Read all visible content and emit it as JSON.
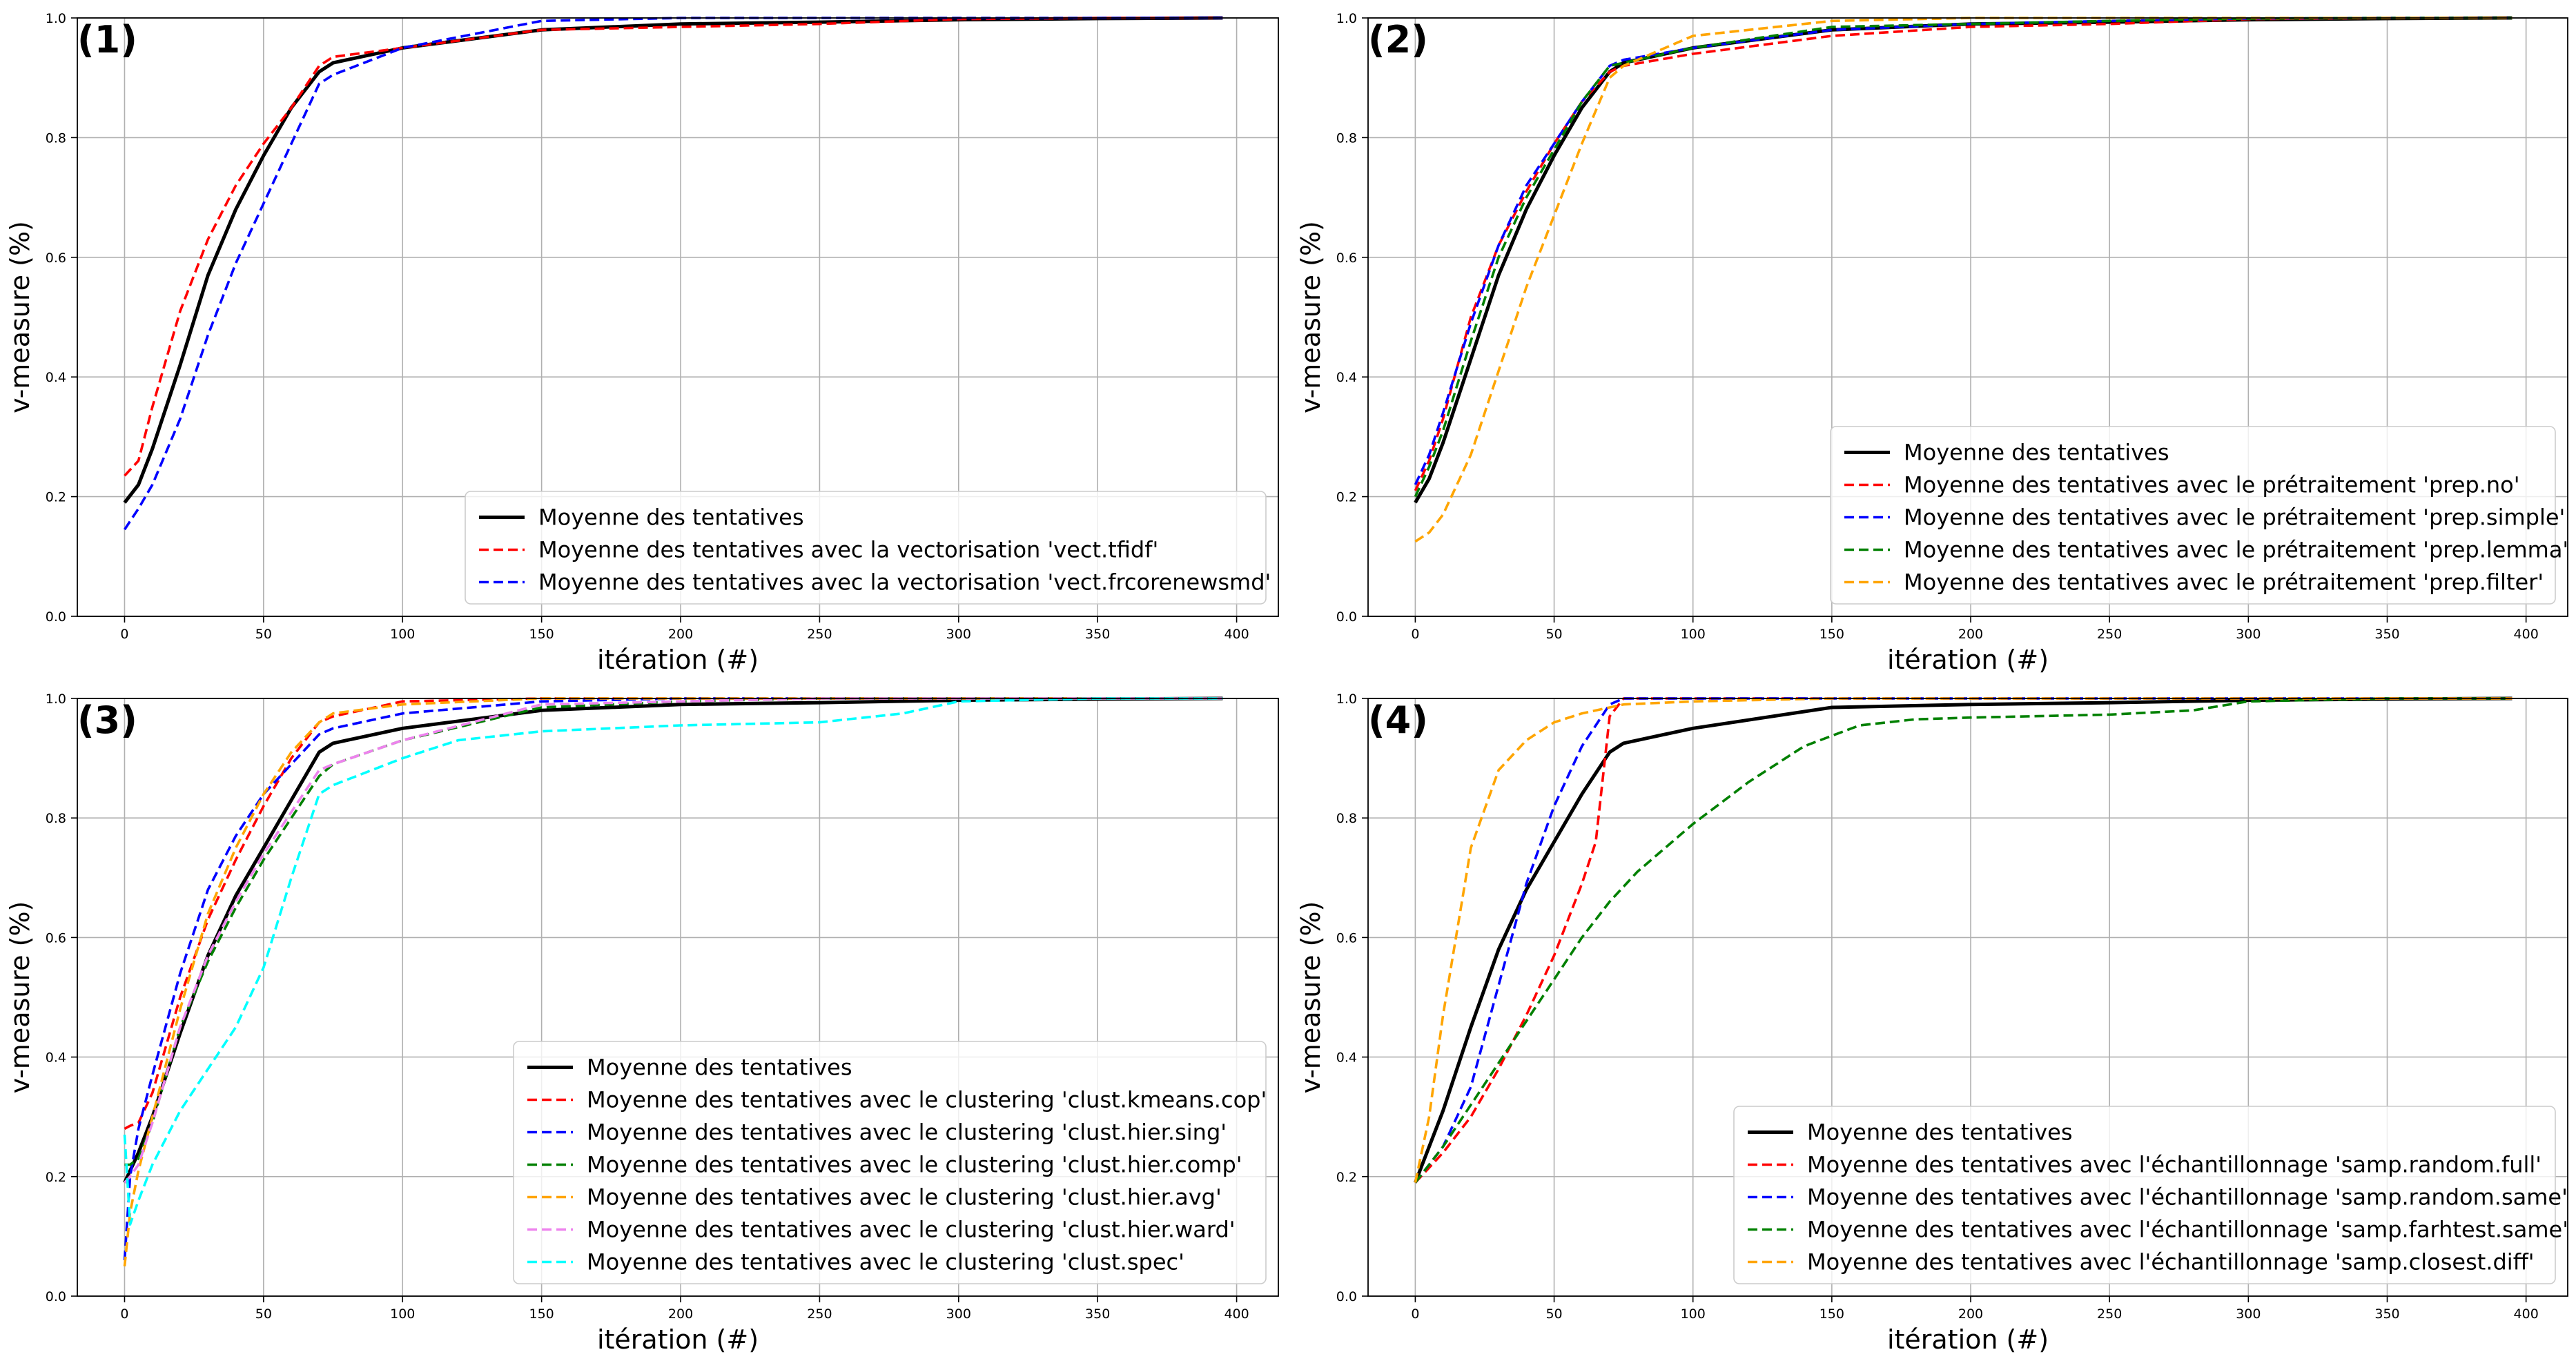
{
  "chart_data": [
    {
      "panel": "(1)",
      "type": "line",
      "xlabel": "itération (#)",
      "ylabel": "v-measure (%)",
      "xlim": [
        -17,
        415
      ],
      "ylim": [
        0.0,
        1.0
      ],
      "xticks": [
        0,
        50,
        100,
        150,
        200,
        250,
        300,
        350,
        400
      ],
      "yticks": [
        0.0,
        0.2,
        0.4,
        0.6,
        0.8,
        1.0
      ],
      "grid": true,
      "legend_position": "lower-right",
      "series": [
        {
          "name": "Moyenne des tentatives",
          "color": "#000000",
          "dash": "solid",
          "x": [
            0,
            5,
            10,
            20,
            30,
            40,
            50,
            60,
            70,
            75,
            100,
            150,
            200,
            250,
            300,
            350,
            395
          ],
          "y": [
            0.19,
            0.22,
            0.28,
            0.42,
            0.57,
            0.68,
            0.77,
            0.85,
            0.91,
            0.925,
            0.95,
            0.98,
            0.99,
            0.993,
            0.997,
            0.999,
            1.0
          ]
        },
        {
          "name": "Moyenne des tentatives avec la vectorisation 'vect.tfidf'",
          "color": "#ff0000",
          "dash": "dashed",
          "x": [
            0,
            5,
            10,
            20,
            30,
            40,
            50,
            60,
            70,
            75,
            100,
            150,
            200,
            250,
            300,
            350,
            395
          ],
          "y": [
            0.235,
            0.26,
            0.35,
            0.51,
            0.63,
            0.72,
            0.79,
            0.85,
            0.92,
            0.935,
            0.95,
            0.98,
            0.985,
            0.99,
            0.998,
            1.0,
            1.0
          ]
        },
        {
          "name": "Moyenne des tentatives avec la vectorisation 'vect.frcorenewsmd'",
          "color": "#0000ff",
          "dash": "dashed",
          "x": [
            0,
            5,
            10,
            20,
            30,
            40,
            50,
            60,
            70,
            75,
            100,
            150,
            200,
            250,
            300,
            350,
            395
          ],
          "y": [
            0.145,
            0.18,
            0.22,
            0.33,
            0.47,
            0.59,
            0.69,
            0.79,
            0.89,
            0.905,
            0.95,
            0.995,
            1.0,
            1.0,
            1.0,
            1.0,
            1.0
          ]
        }
      ]
    },
    {
      "panel": "(2)",
      "type": "line",
      "xlabel": "itération (#)",
      "ylabel": "v-measure (%)",
      "xlim": [
        -17,
        415
      ],
      "ylim": [
        0.0,
        1.0
      ],
      "xticks": [
        0,
        50,
        100,
        150,
        200,
        250,
        300,
        350,
        400
      ],
      "yticks": [
        0.0,
        0.2,
        0.4,
        0.6,
        0.8,
        1.0
      ],
      "grid": true,
      "legend_position": "lower-right",
      "series": [
        {
          "name": "Moyenne des tentatives",
          "color": "#000000",
          "dash": "solid",
          "x": [
            0,
            5,
            10,
            20,
            30,
            40,
            50,
            60,
            70,
            75,
            100,
            150,
            200,
            250,
            300,
            350,
            395
          ],
          "y": [
            0.19,
            0.23,
            0.29,
            0.43,
            0.57,
            0.68,
            0.77,
            0.85,
            0.91,
            0.925,
            0.95,
            0.98,
            0.99,
            0.993,
            0.997,
            0.999,
            1.0
          ]
        },
        {
          "name": "Moyenne des tentatives avec le prétraitement 'prep.no'",
          "color": "#ff0000",
          "dash": "dashed",
          "x": [
            0,
            5,
            10,
            20,
            30,
            40,
            50,
            60,
            70,
            75,
            100,
            150,
            200,
            250,
            300,
            350,
            395
          ],
          "y": [
            0.21,
            0.26,
            0.33,
            0.5,
            0.62,
            0.71,
            0.79,
            0.86,
            0.91,
            0.92,
            0.94,
            0.97,
            0.985,
            0.99,
            0.998,
            1.0,
            1.0
          ]
        },
        {
          "name": "Moyenne des tentatives avec le prétraitement 'prep.simple'",
          "color": "#0000ff",
          "dash": "dashed",
          "x": [
            0,
            5,
            10,
            20,
            30,
            40,
            50,
            60,
            70,
            75,
            100,
            150,
            200,
            250,
            300,
            350,
            395
          ],
          "y": [
            0.22,
            0.27,
            0.34,
            0.49,
            0.62,
            0.72,
            0.79,
            0.86,
            0.92,
            0.93,
            0.95,
            0.98,
            0.99,
            0.995,
            0.999,
            1.0,
            1.0
          ]
        },
        {
          "name": "Moyenne des tentatives avec le prétraitement 'prep.lemma'",
          "color": "#008000",
          "dash": "dashed",
          "x": [
            0,
            5,
            10,
            20,
            30,
            40,
            50,
            60,
            70,
            75,
            100,
            150,
            200,
            250,
            300,
            350,
            395
          ],
          "y": [
            0.2,
            0.25,
            0.31,
            0.46,
            0.6,
            0.7,
            0.78,
            0.86,
            0.92,
            0.925,
            0.95,
            0.985,
            0.99,
            0.995,
            0.999,
            1.0,
            1.0
          ]
        },
        {
          "name": "Moyenne des tentatives avec le prétraitement 'prep.filter'",
          "color": "#ffa500",
          "dash": "dashed",
          "x": [
            0,
            5,
            10,
            20,
            30,
            40,
            50,
            60,
            70,
            75,
            100,
            150,
            200,
            250,
            300,
            350,
            395
          ],
          "y": [
            0.125,
            0.14,
            0.17,
            0.27,
            0.41,
            0.55,
            0.67,
            0.79,
            0.9,
            0.92,
            0.97,
            0.995,
            1.0,
            1.0,
            1.0,
            1.0,
            1.0
          ]
        }
      ]
    },
    {
      "panel": "(3)",
      "type": "line",
      "xlabel": "itération (#)",
      "ylabel": "v-measure (%)",
      "xlim": [
        -17,
        415
      ],
      "ylim": [
        0.0,
        1.0
      ],
      "xticks": [
        0,
        50,
        100,
        150,
        200,
        250,
        300,
        350,
        400
      ],
      "yticks": [
        0.0,
        0.2,
        0.4,
        0.6,
        0.8,
        1.0
      ],
      "grid": true,
      "legend_position": "lower-right",
      "series": [
        {
          "name": "Moyenne des tentatives",
          "color": "#000000",
          "dash": "solid",
          "x": [
            0,
            5,
            10,
            20,
            30,
            40,
            50,
            60,
            70,
            75,
            100,
            150,
            200,
            250,
            300,
            350,
            395
          ],
          "y": [
            0.19,
            0.24,
            0.3,
            0.44,
            0.57,
            0.67,
            0.75,
            0.83,
            0.91,
            0.925,
            0.95,
            0.98,
            0.99,
            0.993,
            0.997,
            0.999,
            1.0
          ]
        },
        {
          "name": "Moyenne des tentatives avec le clustering 'clust.kmeans.cop'",
          "color": "#ff0000",
          "dash": "dashed",
          "x": [
            0,
            2,
            5,
            10,
            20,
            30,
            40,
            50,
            60,
            70,
            75,
            100,
            150,
            200,
            250,
            300,
            350,
            395
          ],
          "y": [
            0.28,
            0.285,
            0.29,
            0.34,
            0.5,
            0.63,
            0.73,
            0.82,
            0.9,
            0.96,
            0.97,
            0.995,
            1.0,
            1.0,
            1.0,
            1.0,
            1.0,
            1.0
          ]
        },
        {
          "name": "Moyenne des tentatives avec le clustering 'clust.hier.sing'",
          "color": "#0000ff",
          "dash": "dashed",
          "x": [
            0,
            2,
            5,
            10,
            20,
            30,
            40,
            50,
            60,
            70,
            75,
            100,
            150,
            200,
            250,
            300,
            350,
            395
          ],
          "y": [
            0.06,
            0.2,
            0.28,
            0.37,
            0.54,
            0.68,
            0.77,
            0.84,
            0.89,
            0.94,
            0.95,
            0.975,
            0.995,
            1.0,
            1.0,
            1.0,
            1.0,
            1.0
          ]
        },
        {
          "name": "Moyenne des tentatives avec le clustering 'clust.hier.comp'",
          "color": "#008000",
          "dash": "dashed",
          "x": [
            0,
            2,
            5,
            10,
            20,
            30,
            40,
            50,
            60,
            70,
            75,
            100,
            150,
            200,
            250,
            300,
            350,
            395
          ],
          "y": [
            0.22,
            0.22,
            0.23,
            0.29,
            0.45,
            0.56,
            0.65,
            0.73,
            0.8,
            0.87,
            0.89,
            0.93,
            0.985,
            0.995,
            1.0,
            1.0,
            1.0,
            1.0
          ]
        },
        {
          "name": "Moyenne des tentatives avec le clustering 'clust.hier.avg'",
          "color": "#ffa500",
          "dash": "dashed",
          "x": [
            0,
            2,
            5,
            10,
            20,
            30,
            40,
            50,
            60,
            70,
            75,
            100,
            150,
            200,
            250,
            300,
            350,
            395
          ],
          "y": [
            0.05,
            0.14,
            0.21,
            0.3,
            0.48,
            0.64,
            0.75,
            0.84,
            0.91,
            0.96,
            0.975,
            0.99,
            1.0,
            1.0,
            1.0,
            1.0,
            1.0,
            1.0
          ]
        },
        {
          "name": "Moyenne des tentatives avec le clustering 'clust.hier.ward'",
          "color": "#ee82ee",
          "dash": "dashed",
          "x": [
            0,
            2,
            5,
            10,
            20,
            30,
            40,
            50,
            60,
            70,
            75,
            100,
            150,
            200,
            250,
            300,
            350,
            395
          ],
          "y": [
            0.19,
            0.2,
            0.22,
            0.29,
            0.45,
            0.57,
            0.66,
            0.74,
            0.81,
            0.88,
            0.89,
            0.93,
            0.99,
            0.995,
            1.0,
            1.0,
            1.0,
            1.0
          ]
        },
        {
          "name": "Moyenne des tentatives avec le clustering 'clust.spec'",
          "color": "#00ffff",
          "dash": "dashed",
          "x": [
            0,
            2,
            5,
            10,
            20,
            30,
            40,
            50,
            60,
            70,
            75,
            100,
            120,
            150,
            200,
            250,
            280,
            300,
            350,
            395
          ],
          "y": [
            0.27,
            0.12,
            0.16,
            0.22,
            0.31,
            0.38,
            0.45,
            0.55,
            0.7,
            0.84,
            0.855,
            0.9,
            0.93,
            0.945,
            0.955,
            0.96,
            0.975,
            0.995,
            1.0,
            1.0
          ]
        }
      ]
    },
    {
      "panel": "(4)",
      "type": "line",
      "xlabel": "itération (#)",
      "ylabel": "v-measure (%)",
      "xlim": [
        -17,
        415
      ],
      "ylim": [
        0.0,
        1.0
      ],
      "xticks": [
        0,
        50,
        100,
        150,
        200,
        250,
        300,
        350,
        400
      ],
      "yticks": [
        0.0,
        0.2,
        0.4,
        0.6,
        0.8,
        1.0
      ],
      "grid": true,
      "legend_position": "lower-right",
      "series": [
        {
          "name": "Moyenne des tentatives",
          "color": "#000000",
          "dash": "solid",
          "x": [
            0,
            10,
            20,
            30,
            40,
            50,
            60,
            70,
            75,
            100,
            150,
            200,
            250,
            300,
            350,
            395
          ],
          "y": [
            0.19,
            0.31,
            0.45,
            0.58,
            0.68,
            0.76,
            0.84,
            0.91,
            0.925,
            0.95,
            0.985,
            0.99,
            0.993,
            0.997,
            0.999,
            1.0
          ]
        },
        {
          "name": "Moyenne des tentatives avec l'échantillonnage 'samp.random.full'",
          "color": "#ff0000",
          "dash": "dashed",
          "x": [
            0,
            10,
            20,
            30,
            40,
            50,
            60,
            65,
            70,
            75,
            100,
            150,
            200,
            250,
            300,
            350,
            395
          ],
          "y": [
            0.19,
            0.24,
            0.3,
            0.38,
            0.47,
            0.57,
            0.69,
            0.76,
            0.97,
            1.0,
            1.0,
            1.0,
            1.0,
            1.0,
            1.0,
            1.0,
            1.0
          ]
        },
        {
          "name": "Moyenne des tentatives avec l'échantillonnage 'samp.random.same'",
          "color": "#0000ff",
          "dash": "dashed",
          "x": [
            0,
            10,
            20,
            30,
            40,
            50,
            60,
            70,
            75,
            100,
            150,
            200,
            250,
            300,
            350,
            395
          ],
          "y": [
            0.19,
            0.25,
            0.35,
            0.52,
            0.69,
            0.82,
            0.92,
            0.99,
            1.0,
            1.0,
            1.0,
            1.0,
            1.0,
            1.0,
            1.0,
            1.0
          ]
        },
        {
          "name": "Moyenne des tentatives avec l'échantillonnage 'samp.farhtest.same'",
          "color": "#008000",
          "dash": "dashed",
          "x": [
            0,
            10,
            20,
            30,
            40,
            50,
            60,
            70,
            80,
            100,
            120,
            140,
            160,
            180,
            200,
            250,
            280,
            300,
            350,
            395
          ],
          "y": [
            0.19,
            0.25,
            0.32,
            0.39,
            0.46,
            0.53,
            0.6,
            0.66,
            0.71,
            0.79,
            0.86,
            0.92,
            0.955,
            0.965,
            0.968,
            0.973,
            0.98,
            0.995,
            1.0,
            1.0
          ]
        },
        {
          "name": "Moyenne des tentatives avec l'échantillonnage 'samp.closest.diff'",
          "color": "#ffa500",
          "dash": "dashed",
          "x": [
            0,
            5,
            10,
            20,
            30,
            40,
            50,
            60,
            70,
            75,
            100,
            150,
            200,
            250,
            300,
            350,
            395
          ],
          "y": [
            0.19,
            0.3,
            0.47,
            0.75,
            0.88,
            0.93,
            0.96,
            0.975,
            0.985,
            0.99,
            0.995,
            1.0,
            1.0,
            1.0,
            1.0,
            1.0,
            1.0
          ]
        }
      ]
    }
  ]
}
